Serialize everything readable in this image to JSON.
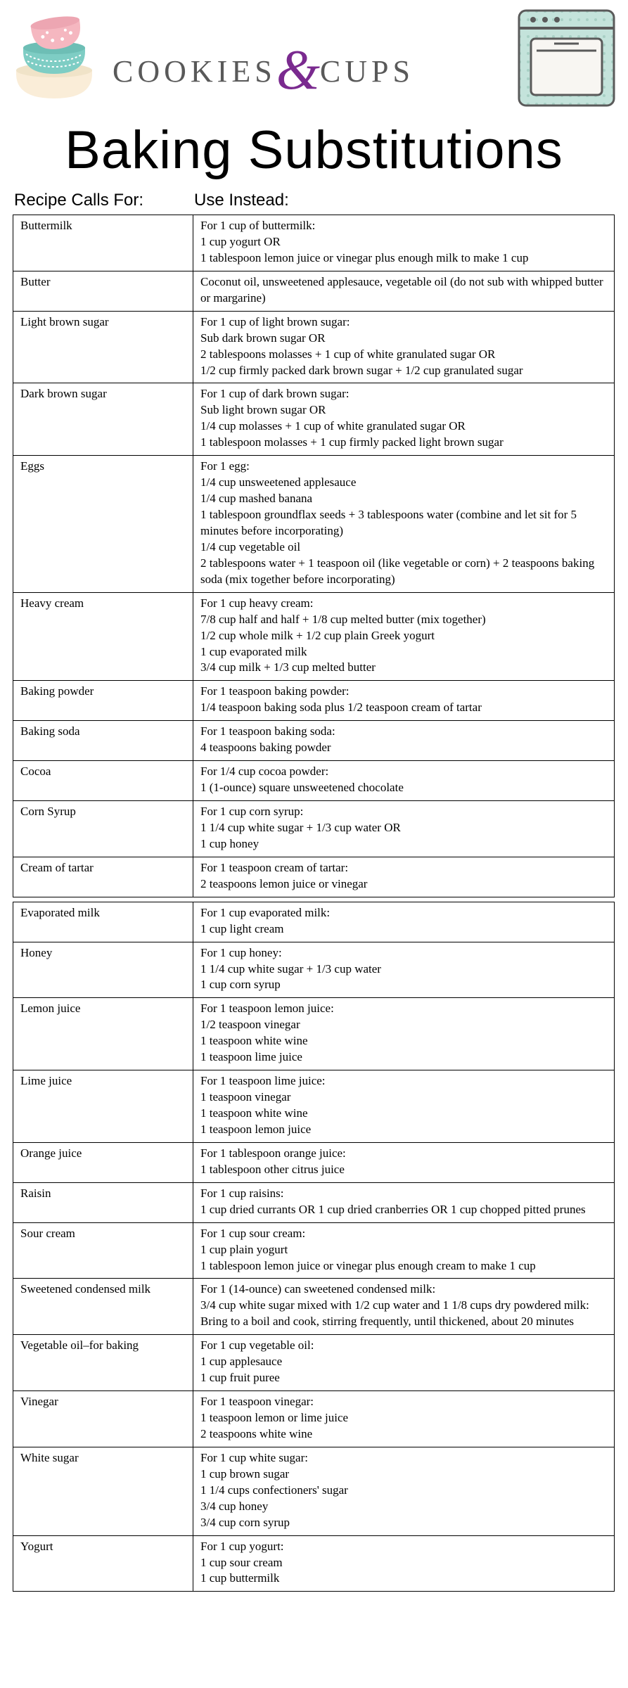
{
  "logo": {
    "left": "COOKIES",
    "amp": "&",
    "right": "CUPS"
  },
  "title": "Baking Substitutions",
  "headers": {
    "calls_for": "Recipe Calls For:",
    "use_instead": "Use Instead:"
  },
  "table1": [
    {
      "ingredient": "Buttermilk",
      "lines": [
        "For 1 cup of buttermilk:",
        "1 cup yogurt OR",
        "1 tablespoon lemon juice or vinegar plus enough milk to make 1 cup"
      ]
    },
    {
      "ingredient": "Butter",
      "lines": [
        "Coconut oil, unsweetened applesauce, vegetable oil (do not sub with whipped butter or margarine)"
      ]
    },
    {
      "ingredient": "Light brown sugar",
      "lines": [
        "For 1 cup of light brown sugar:",
        "Sub dark brown sugar OR",
        "2 tablespoons molasses + 1 cup of white granulated sugar OR",
        "1/2 cup firmly packed dark brown sugar + 1/2 cup granulated sugar"
      ]
    },
    {
      "ingredient": "Dark brown sugar",
      "lines": [
        "For 1 cup of dark brown sugar:",
        "Sub light brown sugar OR",
        "1/4 cup molasses + 1 cup of white granulated sugar OR",
        "1 tablespoon molasses + 1 cup firmly packed light brown sugar"
      ]
    },
    {
      "ingredient": "Eggs",
      "lines": [
        "For 1 egg:",
        "1/4 cup unsweetened applesauce",
        "1/4 cup mashed banana",
        "1 tablespoon groundflax seeds + 3 tablespoons water (combine and let sit for 5 minutes before incorporating)",
        "1/4 cup vegetable oil",
        "2 tablespoons water + 1 teaspoon oil (like vegetable or corn) + 2 teaspoons baking soda (mix together before incorporating)"
      ]
    },
    {
      "ingredient": "Heavy cream",
      "lines": [
        "For 1 cup heavy cream:",
        "7/8 cup half and half + 1/8 cup melted butter (mix together)",
        "1/2 cup whole milk + 1/2 cup plain Greek yogurt",
        "1 cup evaporated milk",
        "3/4 cup milk + 1/3 cup melted butter"
      ]
    },
    {
      "ingredient": "Baking powder",
      "lines": [
        "For 1 teaspoon baking powder:",
        "1/4 teaspoon baking soda plus 1/2 teaspoon cream of tartar"
      ]
    },
    {
      "ingredient": "Baking soda",
      "lines": [
        "For 1 teaspoon baking soda:",
        "4 teaspoons baking powder"
      ]
    },
    {
      "ingredient": "Cocoa",
      "lines": [
        "For 1/4 cup cocoa powder:",
        "1 (1-ounce) square unsweetened chocolate"
      ]
    },
    {
      "ingredient": "Corn Syrup",
      "lines": [
        "For 1 cup corn syrup:",
        "1 1/4 cup white sugar + 1/3 cup water OR",
        "1 cup honey"
      ]
    },
    {
      "ingredient": "Cream of tartar",
      "lines": [
        "For 1 teaspoon cream of tartar:",
        "2 teaspoons lemon juice or vinegar"
      ]
    }
  ],
  "table2": [
    {
      "ingredient": "Evaporated milk",
      "lines": [
        "For 1 cup evaporated milk:",
        "1 cup light cream"
      ]
    },
    {
      "ingredient": "Honey",
      "lines": [
        "For 1 cup honey:",
        "1 1/4 cup white sugar + 1/3 cup water",
        "1 cup corn syrup"
      ]
    },
    {
      "ingredient": "Lemon juice",
      "lines": [
        "For 1 teaspoon lemon juice:",
        "1/2 teaspoon vinegar",
        "1 teaspoon white wine",
        "1 teaspoon lime juice"
      ]
    },
    {
      "ingredient": "Lime juice",
      "lines": [
        "For 1 teaspoon lime juice:",
        "1 teaspoon vinegar",
        "1 teaspoon white wine",
        "1 teaspoon lemon juice"
      ]
    },
    {
      "ingredient": "Orange juice",
      "lines": [
        "For 1 tablespoon orange juice:",
        "1 tablespoon other citrus juice"
      ]
    },
    {
      "ingredient": "Raisin",
      "lines": [
        "For 1 cup raisins:",
        "1 cup dried currants OR 1 cup dried cranberries OR 1 cup chopped pitted prunes"
      ]
    },
    {
      "ingredient": "Sour cream",
      "lines": [
        "For 1 cup sour cream:",
        "1 cup plain yogurt",
        "1 tablespoon lemon juice or vinegar plus enough cream to make 1 cup"
      ]
    },
    {
      "ingredient": "Sweetened condensed milk",
      "lines": [
        "For 1 (14-ounce) can sweetened condensed milk:",
        "3/4 cup white sugar mixed with 1/2 cup water and 1 1/8 cups dry powdered milk: Bring to a boil and cook, stirring frequently, until thickened, about 20 minutes"
      ]
    },
    {
      "ingredient": "Vegetable oil–for baking",
      "lines": [
        "For 1 cup vegetable oil:",
        "1 cup applesauce",
        "1 cup fruit puree"
      ]
    },
    {
      "ingredient": "Vinegar",
      "lines": [
        "For 1 teaspoon vinegar:",
        "1 teaspoon lemon or lime juice",
        "2 teaspoons white wine"
      ]
    },
    {
      "ingredient": "White sugar",
      "lines": [
        "For 1 cup white sugar:",
        "1 cup brown sugar",
        "1 1/4 cups confectioners' sugar",
        "3/4 cup honey",
        "3/4 cup corn syrup"
      ]
    },
    {
      "ingredient": "Yogurt",
      "lines": [
        "For 1 cup yogurt:",
        "1 cup sour cream",
        "1 cup buttermilk"
      ]
    }
  ],
  "colors": {
    "bowl_pink": "#f5b7c0",
    "bowl_teal": "#7ecdc4",
    "bowl_cream": "#faedd8",
    "oven_bg": "#c4e3db",
    "oven_door": "#f8f6f2",
    "oven_dot": "#b5d9cf",
    "oven_border": "#5a5a5a",
    "logo_grey": "#595959",
    "logo_purple": "#7a2a8f"
  }
}
